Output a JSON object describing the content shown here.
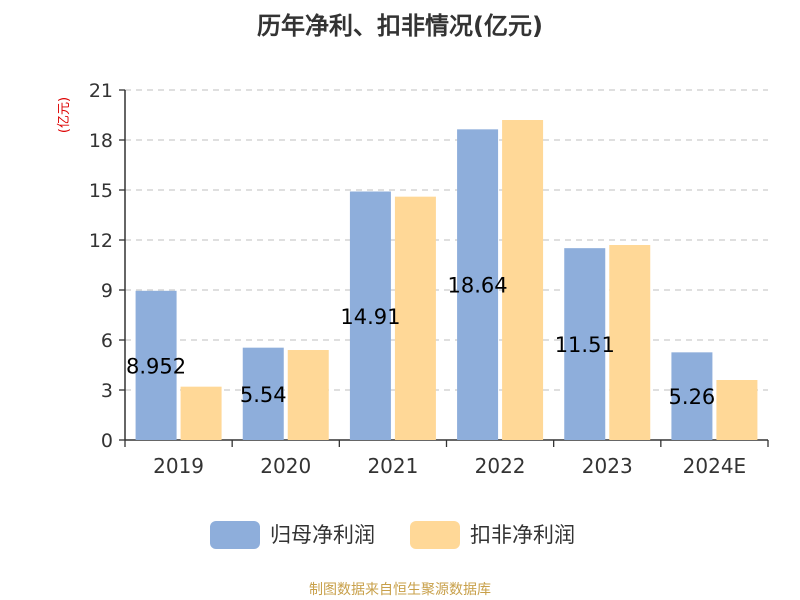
{
  "chart_data": {
    "type": "bar",
    "title": "历年净利、扣非情况(亿元)",
    "unit": "(亿元)",
    "categories": [
      "2019",
      "2020",
      "2021",
      "2022",
      "2023",
      "2024E"
    ],
    "series": [
      {
        "name": "归母净利润",
        "color": "#8eaedb",
        "values": [
          8.952,
          5.54,
          14.91,
          18.64,
          11.51,
          5.26
        ],
        "labels": [
          "8.952",
          "5.54",
          "14.91",
          "18.64",
          "11.51",
          "5.26"
        ]
      },
      {
        "name": "扣非净利润",
        "color": "#ffd897",
        "values": [
          3.2,
          5.4,
          14.6,
          19.2,
          11.7,
          3.6
        ]
      }
    ],
    "ylim": [
      0,
      21
    ],
    "yticks": [
      "0",
      "3",
      "6",
      "9",
      "12",
      "15",
      "18",
      "21"
    ],
    "grid": true,
    "legend_position": "bottom",
    "source": "制图数据来自恒生聚源数据库"
  },
  "colors": {
    "unit": "#dd0000",
    "source": "#c8a04a",
    "axis": "#333333",
    "grid": "#cccccc"
  }
}
